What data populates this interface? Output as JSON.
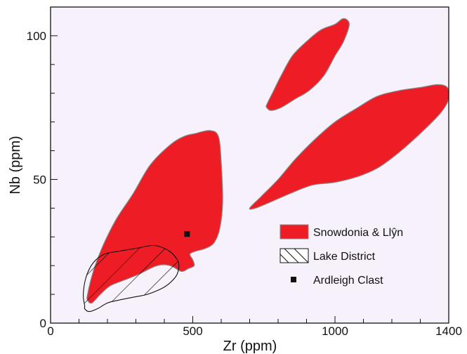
{
  "chart_data": {
    "type": "scatter",
    "title": "",
    "xlabel": "Zr (ppm)",
    "ylabel": "Nb (ppm)",
    "xlim": [
      0,
      1400
    ],
    "ylim": [
      0,
      110
    ],
    "x_ticks": [
      0,
      500,
      1000,
      1400
    ],
    "y_ticks": [
      0,
      50,
      100
    ],
    "grid": false,
    "legend_position": "bottom-right",
    "colors": {
      "plot_background": "#f7f1fb",
      "field_fill": "#ee1c25",
      "field_outline": "#888888",
      "hatch": "#000000",
      "point": "#111111"
    },
    "legend": [
      {
        "label": "Snowdonia & Llŷn",
        "symbol": "red-filled-area"
      },
      {
        "label": "Lake District",
        "symbol": "hatched-area"
      },
      {
        "label": "Ardleigh Clast",
        "symbol": "black-square"
      }
    ],
    "series": [
      {
        "name": "Snowdonia & Llŷn",
        "kind": "field",
        "regions": [
          [
            [
              130,
              10
            ],
            [
              150,
              18
            ],
            [
              180,
              26
            ],
            [
              230,
              36
            ],
            [
              290,
              45
            ],
            [
              350,
              55
            ],
            [
              420,
              62
            ],
            [
              470,
              65
            ],
            [
              510,
              66
            ],
            [
              560,
              67
            ],
            [
              590,
              65
            ],
            [
              600,
              56
            ],
            [
              605,
              42
            ],
            [
              595,
              33
            ],
            [
              575,
              28
            ],
            [
              545,
              26
            ],
            [
              510,
              25
            ],
            [
              490,
              24
            ],
            [
              500,
              22
            ],
            [
              505,
              20
            ],
            [
              485,
              19
            ],
            [
              460,
              18
            ],
            [
              420,
              20
            ],
            [
              375,
              20
            ],
            [
              310,
              17
            ],
            [
              260,
              15
            ],
            [
              210,
              13
            ],
            [
              175,
              10
            ],
            [
              145,
              7
            ],
            [
              130,
              8
            ]
          ],
          [
            [
              760,
              76
            ],
            [
              780,
              80
            ],
            [
              810,
              86
            ],
            [
              850,
              93
            ],
            [
              900,
              98
            ],
            [
              950,
              102
            ],
            [
              1000,
              104
            ],
            [
              1030,
              106
            ],
            [
              1050,
              104
            ],
            [
              1030,
              98
            ],
            [
              1000,
              93
            ],
            [
              960,
              86
            ],
            [
              910,
              81
            ],
            [
              860,
              78
            ],
            [
              810,
              75
            ],
            [
              775,
              74
            ],
            [
              760,
              75
            ]
          ],
          [
            [
              700,
              40
            ],
            [
              740,
              44
            ],
            [
              800,
              50
            ],
            [
              860,
              57
            ],
            [
              930,
              64
            ],
            [
              1000,
              70
            ],
            [
              1080,
              75
            ],
            [
              1150,
              79
            ],
            [
              1230,
              81
            ],
            [
              1300,
              82
            ],
            [
              1360,
              83
            ],
            [
              1395,
              82
            ],
            [
              1400,
              78
            ],
            [
              1370,
              73
            ],
            [
              1300,
              66
            ],
            [
              1220,
              59
            ],
            [
              1150,
              54
            ],
            [
              1080,
              51
            ],
            [
              1000,
              49
            ],
            [
              920,
              48
            ],
            [
              840,
              45
            ],
            [
              770,
              42
            ],
            [
              720,
              40
            ]
          ]
        ]
      },
      {
        "name": "Lake District",
        "kind": "hatched-field",
        "regions": [
          [
            [
              120,
              6
            ],
            [
              115,
              10
            ],
            [
              125,
              16
            ],
            [
              150,
              21
            ],
            [
              190,
              24
            ],
            [
              240,
              25
            ],
            [
              300,
              26
            ],
            [
              360,
              27
            ],
            [
              400,
              26
            ],
            [
              430,
              24
            ],
            [
              450,
              21
            ],
            [
              445,
              17
            ],
            [
              420,
              14
            ],
            [
              390,
              12
            ],
            [
              340,
              10
            ],
            [
              290,
              9
            ],
            [
              240,
              8
            ],
            [
              200,
              7
            ],
            [
              165,
              5
            ],
            [
              135,
              4
            ],
            [
              120,
              5
            ]
          ]
        ]
      },
      {
        "name": "Ardleigh Clast",
        "kind": "points",
        "x": [
          480
        ],
        "y": [
          31
        ]
      }
    ]
  }
}
